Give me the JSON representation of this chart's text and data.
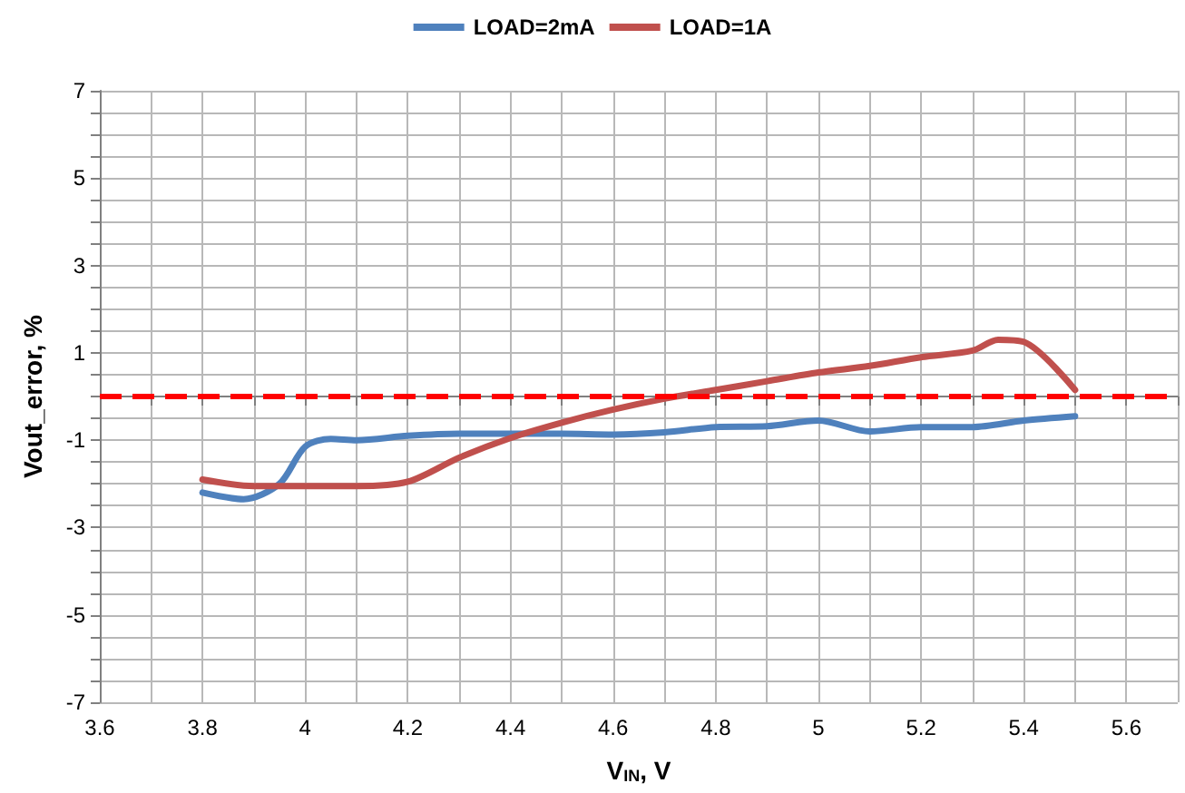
{
  "chart_data": {
    "type": "line",
    "xlabel": "V$_{IN}$, V",
    "ylabel": "Vout_error, %",
    "xlim": [
      3.6,
      5.7
    ],
    "ylim": [
      -7,
      7
    ],
    "xticks": [
      3.6,
      {
        "value": 3.7,
        "label": null
      },
      3.8,
      {
        "value": 3.9,
        "label": null
      },
      4,
      {
        "value": 4.1,
        "label": null
      },
      4.2,
      {
        "value": 4.3,
        "label": null
      },
      4.4,
      {
        "value": 4.5,
        "label": null
      },
      4.6,
      {
        "value": 4.7,
        "label": null
      },
      4.8,
      {
        "value": 4.9,
        "label": null
      },
      5,
      {
        "value": 5.1,
        "label": null
      },
      5.2,
      {
        "value": 5.3,
        "label": null
      },
      5.4,
      {
        "value": 5.5,
        "label": null
      },
      5.6,
      {
        "value": 5.7,
        "label": null
      }
    ],
    "yticks": [
      -7,
      {
        "value": -6.5,
        "label": null
      },
      {
        "value": -6,
        "label": null
      },
      {
        "value": -5.5,
        "label": null
      },
      -5,
      {
        "value": -4.5,
        "label": null
      },
      {
        "value": -4,
        "label": null
      },
      {
        "value": -3.5,
        "label": null
      },
      -3,
      {
        "value": -2.5,
        "label": null
      },
      {
        "value": -2,
        "label": null
      },
      {
        "value": -1.5,
        "label": null
      },
      -1,
      {
        "value": -0.5,
        "label": null
      },
      {
        "value": 0,
        "label": null
      },
      {
        "value": 0.5,
        "label": null
      },
      1,
      {
        "value": 1.5,
        "label": null
      },
      {
        "value": 2,
        "label": null
      },
      {
        "value": 2.5,
        "label": null
      },
      3,
      {
        "value": 3.5,
        "label": null
      },
      {
        "value": 4,
        "label": null
      },
      {
        "value": 4.5,
        "label": null
      },
      5,
      {
        "value": 5.5,
        "label": null
      },
      {
        "value": 6,
        "label": null
      },
      {
        "value": 6.5,
        "label": null
      },
      7
    ],
    "grid": true,
    "legend": "top",
    "marker": "none",
    "line_style": "solid",
    "series": [
      {
        "name": "LOAD=2mA",
        "color": "#4f81bd",
        "x": [
          3.8,
          3.88,
          3.95,
          4.0,
          4.05,
          4.1,
          4.2,
          4.3,
          4.4,
          4.5,
          4.6,
          4.7,
          4.8,
          4.9,
          5.0,
          5.1,
          5.2,
          5.3,
          5.4,
          5.5
        ],
        "values": [
          -2.2,
          -2.35,
          -2.0,
          -1.15,
          -0.97,
          -1.0,
          -0.9,
          -0.85,
          -0.85,
          -0.85,
          -0.87,
          -0.82,
          -0.7,
          -0.68,
          -0.55,
          -0.8,
          -0.7,
          -0.7,
          -0.55,
          -0.45
        ]
      },
      {
        "name": "LOAD=1A",
        "color": "#c0504d",
        "x": [
          3.8,
          3.9,
          4.0,
          4.1,
          4.2,
          4.3,
          4.4,
          4.5,
          4.6,
          4.7,
          4.8,
          4.9,
          5.0,
          5.1,
          5.2,
          5.3,
          5.35,
          5.4,
          5.5
        ],
        "values": [
          -1.9,
          -2.05,
          -2.05,
          -2.05,
          -1.95,
          -1.4,
          -0.95,
          -0.6,
          -0.3,
          -0.05,
          0.15,
          0.35,
          0.55,
          0.7,
          0.9,
          1.05,
          1.3,
          1.25,
          0.15
        ]
      }
    ],
    "ref_lines": [
      {
        "axis": "y",
        "value": 0,
        "color": "#ff0000",
        "line_style": "dashed"
      }
    ]
  }
}
